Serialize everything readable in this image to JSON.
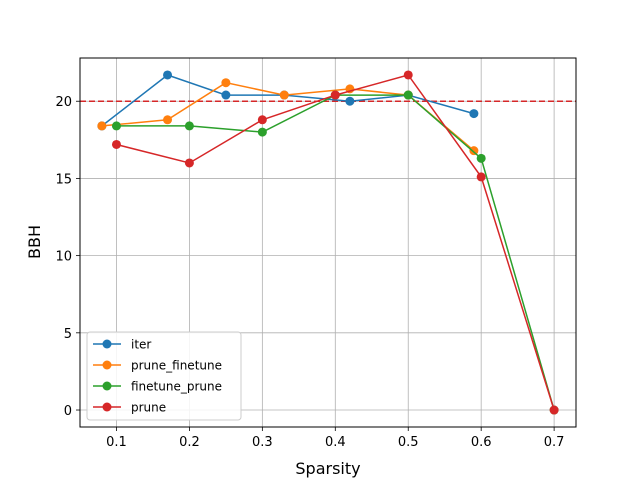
{
  "chart_data": {
    "type": "line",
    "title": "",
    "xlabel": "Sparsity",
    "ylabel": "BBH",
    "xlim": [
      0.05,
      0.73
    ],
    "ylim": [
      -1.1,
      22.8
    ],
    "xticks": [
      0.1,
      0.2,
      0.3,
      0.4,
      0.5,
      0.6,
      0.7
    ],
    "xtick_labels": [
      "0.1",
      "0.2",
      "0.3",
      "0.4",
      "0.5",
      "0.6",
      "0.7"
    ],
    "yticks": [
      0,
      5,
      10,
      15,
      20
    ],
    "ytick_labels": [
      "0",
      "5",
      "10",
      "15",
      "20"
    ],
    "grid": true,
    "legend_position": "lower-left",
    "reference_line": {
      "y": 20,
      "color": "#d62728",
      "style": "dashed"
    },
    "series": [
      {
        "name": "iter",
        "color": "#1f77b4",
        "x": [
          0.08,
          0.17,
          0.25,
          0.33,
          0.42,
          0.5,
          0.59
        ],
        "y": [
          18.4,
          21.7,
          20.4,
          20.4,
          20.0,
          20.4,
          19.2
        ]
      },
      {
        "name": "prune_finetune",
        "color": "#ff7f0e",
        "x": [
          0.08,
          0.17,
          0.25,
          0.33,
          0.42,
          0.5,
          0.59
        ],
        "y": [
          18.4,
          18.8,
          21.2,
          20.4,
          20.8,
          20.4,
          16.8
        ]
      },
      {
        "name": "finetune_prune",
        "color": "#2ca02c",
        "x": [
          0.1,
          0.2,
          0.3,
          0.4,
          0.5,
          0.6,
          0.7
        ],
        "y": [
          18.4,
          18.4,
          18.0,
          20.4,
          20.4,
          16.3,
          0.0
        ]
      },
      {
        "name": "prune",
        "color": "#d62728",
        "x": [
          0.1,
          0.2,
          0.3,
          0.4,
          0.5,
          0.6,
          0.7
        ],
        "y": [
          17.2,
          16.0,
          18.8,
          20.4,
          21.7,
          15.1,
          0.0
        ]
      }
    ]
  }
}
